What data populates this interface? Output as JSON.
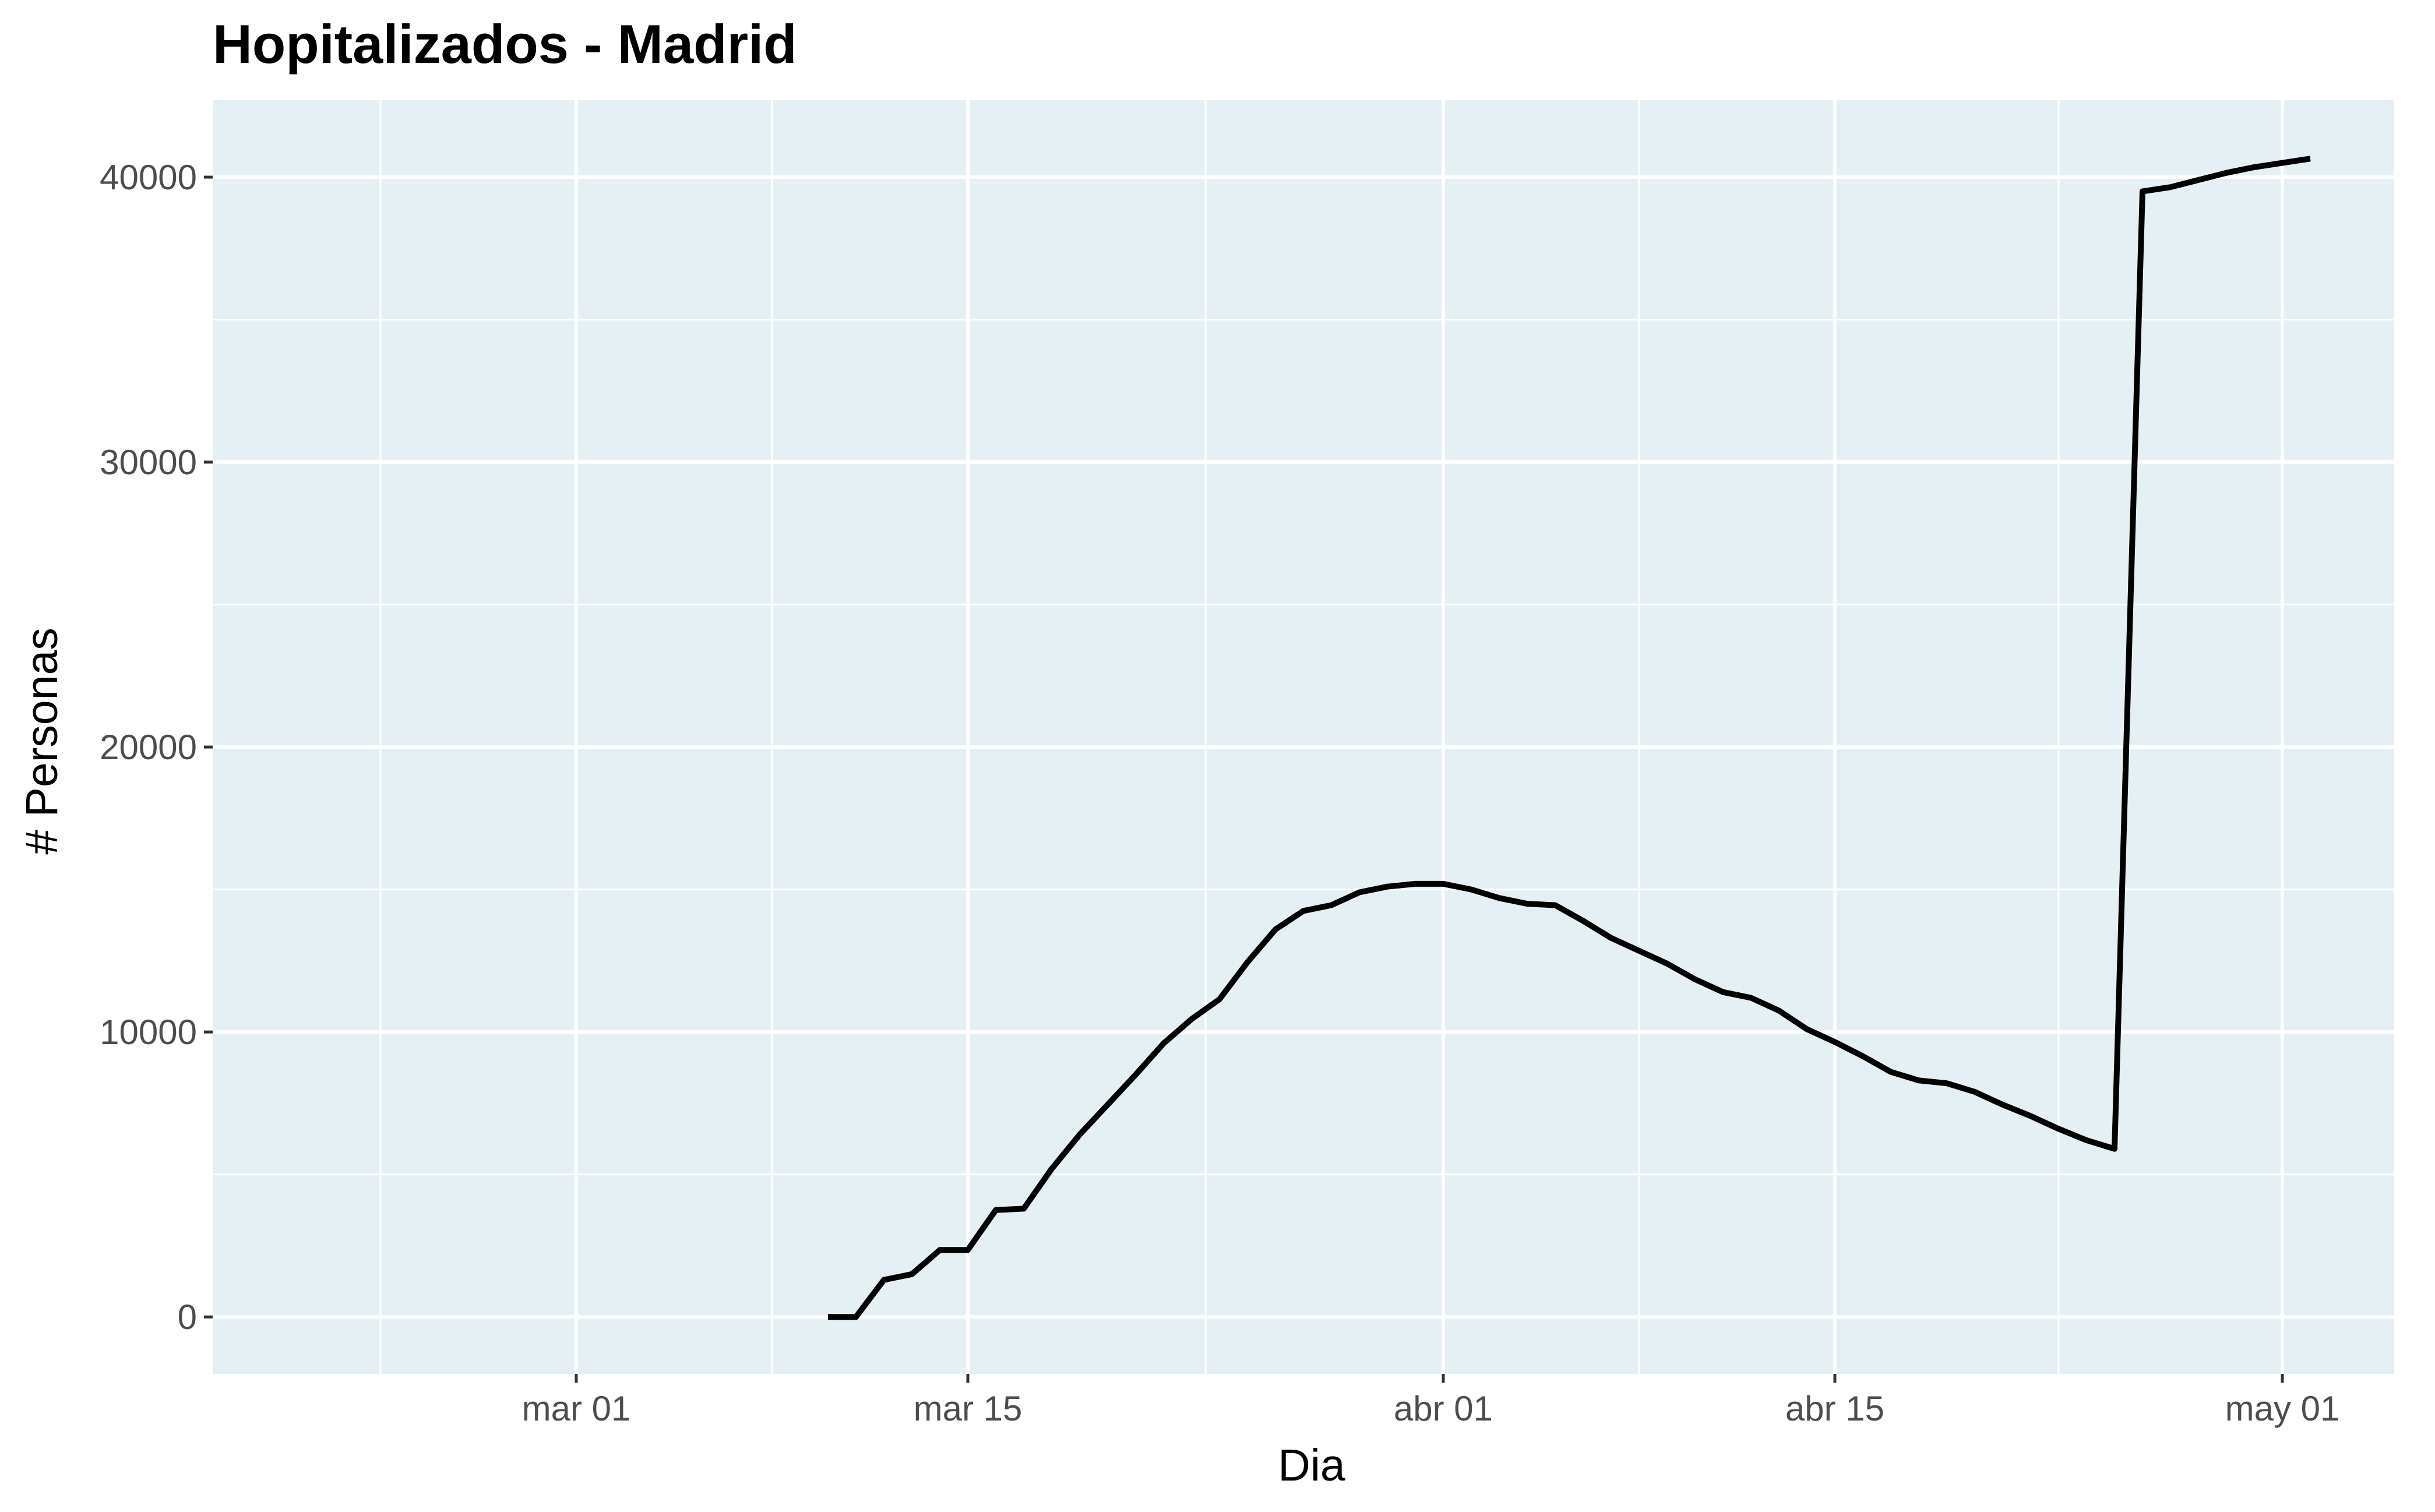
{
  "chart_data": {
    "type": "line",
    "title": "Hopitalizados - Madrid",
    "xlabel": "Dia",
    "ylabel": "# Personas",
    "x_tick_labels": [
      "mar 01",
      "mar 15",
      "abr 01",
      "abr 15",
      "may 01"
    ],
    "x_tick_dates": [
      "2020-03-01",
      "2020-03-15",
      "2020-04-01",
      "2020-04-15",
      "2020-05-01"
    ],
    "y_tick_labels": [
      "0",
      "10000",
      "20000",
      "30000",
      "40000"
    ],
    "y_ticks": [
      0,
      10000,
      20000,
      30000,
      40000
    ],
    "xlim": [
      "2020-02-17",
      "2020-05-05"
    ],
    "ylim": [
      -2000,
      42700
    ],
    "grid": true,
    "background": "#e5f0f4",
    "line_color": "#000000",
    "series": [
      {
        "x": [
          "2020-03-10",
          "2020-03-11",
          "2020-03-12",
          "2020-03-13",
          "2020-03-14",
          "2020-03-15",
          "2020-03-16",
          "2020-03-17",
          "2020-03-18",
          "2020-03-19",
          "2020-03-20",
          "2020-03-21",
          "2020-03-22",
          "2020-03-23",
          "2020-03-24",
          "2020-03-25",
          "2020-03-26",
          "2020-03-27",
          "2020-03-28",
          "2020-03-29",
          "2020-03-30",
          "2020-03-31",
          "2020-04-01",
          "2020-04-02",
          "2020-04-03",
          "2020-04-04",
          "2020-04-05",
          "2020-04-06",
          "2020-04-07",
          "2020-04-08",
          "2020-04-09",
          "2020-04-10",
          "2020-04-11",
          "2020-04-12",
          "2020-04-13",
          "2020-04-14",
          "2020-04-15",
          "2020-04-16",
          "2020-04-17",
          "2020-04-18",
          "2020-04-19",
          "2020-04-20",
          "2020-04-21",
          "2020-04-22",
          "2020-04-23",
          "2020-04-24",
          "2020-04-25",
          "2020-04-26",
          "2020-04-27",
          "2020-04-28",
          "2020-04-29",
          "2020-04-30",
          "2020-05-01",
          "2020-05-02"
        ],
        "values": [
          0,
          0,
          1300,
          1500,
          2350,
          2350,
          3750,
          3800,
          5200,
          6400,
          7450,
          8500,
          9600,
          10450,
          11150,
          12450,
          13600,
          14250,
          14450,
          14900,
          15100,
          15200,
          15200,
          15000,
          14700,
          14500,
          14450,
          13900,
          13300,
          12850,
          12400,
          11850,
          11400,
          11200,
          10750,
          10100,
          9650,
          9150,
          8600,
          8300,
          8200,
          7900,
          7450,
          7050,
          6600,
          6200,
          5900,
          39500,
          39650,
          39900,
          40150,
          40350,
          40500,
          40650
        ]
      }
    ]
  }
}
